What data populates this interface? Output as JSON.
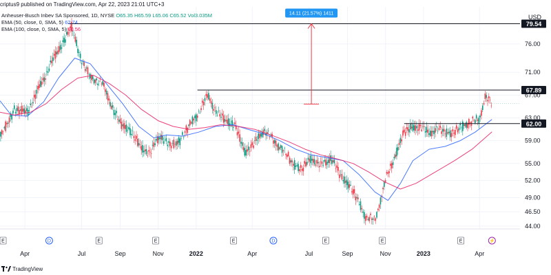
{
  "header": {
    "published": "scriptus9 published on TradingView.com, Apr 22, 2023 21:01 UTC+3"
  },
  "legend": {
    "symbol": "Anheuser-Busch Inbev SA Sponsored, 1D, NYSE",
    "ohlc": "O65.35 H65.59 L65.06 C65.52 Vol3.035M",
    "ema50_label": "EMA (50, close, 0, SMA, 5)",
    "ema50_value": "62.74",
    "ema100_label": "EMA (100, close, 0, SMA, 5)",
    "ema100_value": "60.56"
  },
  "currency": "USD",
  "footer": {
    "brand": "TradingView"
  },
  "annotation": {
    "label": "14.11 (21.57%) 1411"
  },
  "colors": {
    "up": "#089981",
    "down": "#f23645",
    "ema50": "#2962ff",
    "ema100": "#e91e63",
    "annotation": "#2196f3",
    "measure": "#f23645"
  },
  "chart_data": {
    "type": "line",
    "title": "Anheuser-Busch Inbev SA Sponsored, 1D, NYSE",
    "ylabel": "USD",
    "ylim": [
      43.5,
      82.5
    ],
    "y_ticks": [
      "44.00",
      "46.50",
      "49.00",
      "52.00",
      "55.00",
      "59.00",
      "63.00",
      "67.00",
      "71.00",
      "76.00"
    ],
    "x_ticks": [
      {
        "label": "Apr",
        "date": "2021-04-01",
        "bold": false
      },
      {
        "label": "Jul",
        "date": "2021-07-01",
        "bold": false
      },
      {
        "label": "Sep",
        "date": "2021-09-01",
        "bold": false
      },
      {
        "label": "Nov",
        "date": "2021-11-01",
        "bold": false
      },
      {
        "label": "2022",
        "date": "2022-01-01",
        "bold": true
      },
      {
        "label": "Apr",
        "date": "2022-04-01",
        "bold": false
      },
      {
        "label": "Jul",
        "date": "2022-07-01",
        "bold": false
      },
      {
        "label": "Sep",
        "date": "2022-09-01",
        "bold": false
      },
      {
        "label": "Nov",
        "date": "2022-11-01",
        "bold": false
      },
      {
        "label": "2023",
        "date": "2023-01-01",
        "bold": true
      },
      {
        "label": "Apr",
        "date": "2023-04-01",
        "bold": false
      }
    ],
    "x_range": [
      "2021-02-20",
      "2023-06-05"
    ],
    "events": [
      {
        "label": "E",
        "date": "2021-02-25"
      },
      {
        "label": "D",
        "date": "2021-05-10"
      },
      {
        "label": "E",
        "date": "2021-07-29"
      },
      {
        "label": "E",
        "date": "2021-10-28"
      },
      {
        "label": "E",
        "date": "2022-03-02"
      },
      {
        "label": "D",
        "date": "2022-05-05"
      },
      {
        "label": "E",
        "date": "2022-07-28"
      },
      {
        "label": "E",
        "date": "2022-10-27"
      },
      {
        "label": "E",
        "date": "2023-03-02"
      },
      {
        "label": "⚡",
        "date": "2023-04-21"
      }
    ],
    "levels": [
      {
        "label": "79.54",
        "value": 79.54,
        "from": "2021-06-10",
        "style": "dark"
      },
      {
        "label": "67.89",
        "value": 67.89,
        "from": "2022-01-03",
        "style": "dark"
      },
      {
        "label": "62.00",
        "value": 62.0,
        "from": "2022-12-01",
        "style": "dark"
      }
    ],
    "last_price": 65.52,
    "measure": {
      "date": "2022-07-05",
      "from": 65.43,
      "to": 79.54
    },
    "series": [
      {
        "name": "Anheuser-Busch Inbev SA Sponsored",
        "x": [
          "2021-02-20",
          "2021-03-15",
          "2021-04-05",
          "2021-04-25",
          "2021-05-15",
          "2021-06-05",
          "2021-06-15",
          "2021-06-28",
          "2021-07-15",
          "2021-08-01",
          "2021-08-15",
          "2021-09-01",
          "2021-09-20",
          "2021-10-05",
          "2021-10-20",
          "2021-11-05",
          "2021-11-20",
          "2021-12-05",
          "2021-12-20",
          "2022-01-05",
          "2022-01-20",
          "2022-02-05",
          "2022-02-20",
          "2022-03-05",
          "2022-03-20",
          "2022-04-05",
          "2022-04-20",
          "2022-05-05",
          "2022-05-20",
          "2022-06-05",
          "2022-06-20",
          "2022-07-05",
          "2022-07-20",
          "2022-08-05",
          "2022-08-20",
          "2022-09-05",
          "2022-09-20",
          "2022-10-01",
          "2022-10-15",
          "2022-11-01",
          "2022-11-15",
          "2022-12-01",
          "2022-12-15",
          "2023-01-01",
          "2023-01-15",
          "2023-02-01",
          "2023-02-15",
          "2023-03-01",
          "2023-03-15",
          "2023-04-01",
          "2023-04-10",
          "2023-04-21"
        ],
        "values": [
          59.5,
          64.5,
          64.0,
          68.5,
          73.0,
          77.0,
          79.0,
          74.0,
          70.0,
          69.5,
          66.0,
          62.0,
          60.5,
          57.5,
          57.0,
          60.0,
          58.0,
          59.0,
          61.5,
          64.0,
          67.0,
          63.5,
          62.5,
          61.5,
          57.0,
          58.5,
          61.0,
          59.0,
          57.5,
          55.0,
          54.0,
          56.0,
          54.5,
          56.0,
          53.0,
          51.0,
          48.0,
          45.5,
          45.0,
          52.0,
          56.0,
          60.5,
          61.5,
          61.0,
          60.5,
          61.0,
          60.0,
          61.5,
          62.0,
          63.0,
          66.5,
          65.52
        ]
      },
      {
        "name": "EMA (50, close, 0, SMA, 5)",
        "x": [
          "2021-02-20",
          "2021-03-10",
          "2021-04-05",
          "2021-05-01",
          "2021-05-25",
          "2021-06-20",
          "2021-07-15",
          "2021-08-10",
          "2021-09-05",
          "2021-10-01",
          "2021-10-25",
          "2021-11-15",
          "2021-12-10",
          "2022-01-05",
          "2022-02-01",
          "2022-03-01",
          "2022-03-25",
          "2022-04-20",
          "2022-05-15",
          "2022-06-10",
          "2022-07-05",
          "2022-08-01",
          "2022-08-25",
          "2022-09-20",
          "2022-10-15",
          "2022-11-05",
          "2022-11-25",
          "2022-12-15",
          "2023-01-10",
          "2023-02-05",
          "2023-03-01",
          "2023-03-25",
          "2023-04-21"
        ],
        "values": [
          66.0,
          63.5,
          63.3,
          65.8,
          70.0,
          73.5,
          72.5,
          69.0,
          65.5,
          61.5,
          59.5,
          60.0,
          59.8,
          60.5,
          61.5,
          61.8,
          61.0,
          60.2,
          59.0,
          57.5,
          56.5,
          56.0,
          55.5,
          53.0,
          50.0,
          48.5,
          51.5,
          55.5,
          57.5,
          58.0,
          59.0,
          60.5,
          62.74
        ]
      },
      {
        "name": "EMA (100, close, 0, SMA, 5)",
        "x": [
          "2021-02-20",
          "2021-03-15",
          "2021-04-10",
          "2021-05-05",
          "2021-05-30",
          "2021-06-25",
          "2021-07-20",
          "2021-08-15",
          "2021-09-10",
          "2021-10-05",
          "2021-11-01",
          "2021-11-25",
          "2021-12-20",
          "2022-01-15",
          "2022-02-10",
          "2022-03-10",
          "2022-04-05",
          "2022-05-01",
          "2022-05-30",
          "2022-06-25",
          "2022-07-20",
          "2022-08-15",
          "2022-09-10",
          "2022-10-05",
          "2022-10-30",
          "2022-11-25",
          "2022-12-20",
          "2023-01-20",
          "2023-02-20",
          "2023-03-20",
          "2023-04-21"
        ],
        "values": [
          64.0,
          63.5,
          64.0,
          65.5,
          68.0,
          70.0,
          70.5,
          69.0,
          67.0,
          64.5,
          62.5,
          61.5,
          61.0,
          61.3,
          61.8,
          61.5,
          61.0,
          60.0,
          58.8,
          57.5,
          56.5,
          55.8,
          55.0,
          53.5,
          51.8,
          50.5,
          51.5,
          53.5,
          55.5,
          57.5,
          60.56
        ]
      }
    ]
  }
}
